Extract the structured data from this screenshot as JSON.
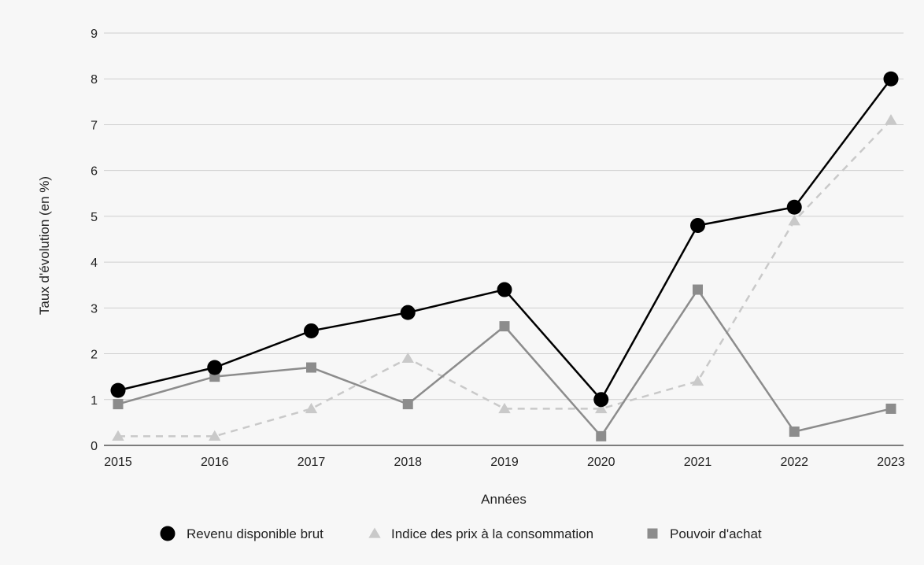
{
  "chart_data": {
    "type": "line",
    "title": "",
    "xlabel": "Années",
    "ylabel": "Taux d'évolution (en %)",
    "categories": [
      "2015",
      "2016",
      "2017",
      "2018",
      "2019",
      "2020",
      "2021",
      "2022",
      "2023"
    ],
    "y_ticks": [
      "0",
      "1",
      "2",
      "3",
      "4",
      "5",
      "6",
      "7",
      "8",
      "9"
    ],
    "ylim": [
      0,
      9
    ],
    "grid": "horizontal",
    "legend_position": "bottom",
    "series": [
      {
        "name": "Revenu disponible brut",
        "values": [
          1.2,
          1.7,
          2.5,
          2.9,
          3.4,
          1.0,
          4.8,
          5.2,
          8.0
        ],
        "color": "#000000",
        "marker": "circle",
        "dash": "solid"
      },
      {
        "name": "Indice des prix à la consommation",
        "values": [
          0.2,
          0.2,
          0.8,
          1.9,
          0.8,
          0.8,
          1.4,
          4.9,
          7.1
        ],
        "color": "#c9c9c9",
        "marker": "triangle",
        "dash": "dashed"
      },
      {
        "name": "Pouvoir d'achat",
        "values": [
          0.9,
          1.5,
          1.7,
          0.9,
          2.6,
          0.2,
          3.4,
          0.3,
          0.8
        ],
        "color": "#8c8c8c",
        "marker": "square",
        "dash": "solid"
      }
    ]
  }
}
